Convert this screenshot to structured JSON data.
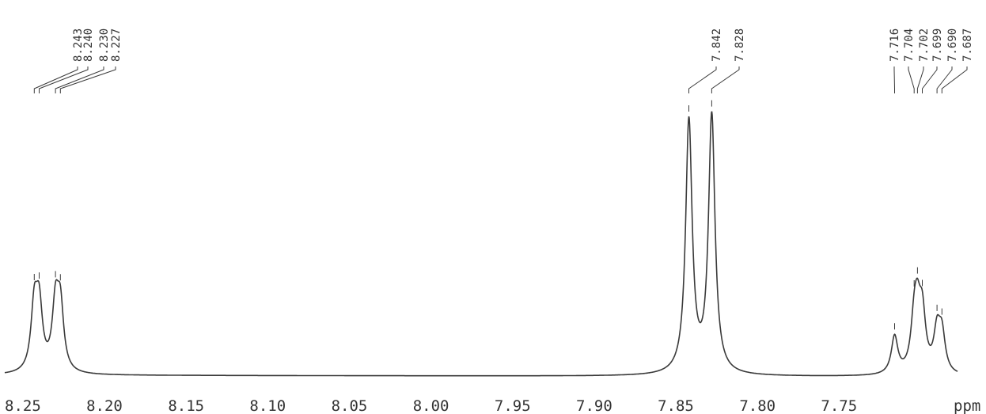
{
  "chart_data": {
    "type": "line",
    "xlabel": "ppm",
    "xlim": [
      8.264,
      7.66
    ],
    "x_reversed": true,
    "x_ticks": [
      "8.25",
      "8.20",
      "8.15",
      "8.10",
      "8.05",
      "8.00",
      "7.95",
      "7.90",
      "7.85",
      "7.80",
      "7.75"
    ],
    "grid": false,
    "legend": false,
    "peaks": [
      {
        "label": "8.243",
        "ppm": 8.243,
        "height": 0.72
      },
      {
        "label": "8.240",
        "ppm": 8.24,
        "height": 0.71
      },
      {
        "label": "8.230",
        "ppm": 8.23,
        "height": 0.73
      },
      {
        "label": "8.227",
        "ppm": 8.227,
        "height": 0.71
      },
      {
        "label": "7.842",
        "ppm": 7.842,
        "height": 2.9
      },
      {
        "label": "7.828",
        "ppm": 7.828,
        "height": 2.96
      },
      {
        "label": "7.716",
        "ppm": 7.716,
        "height": 0.43
      },
      {
        "label": "7.704",
        "ppm": 7.704,
        "height": 0.5
      },
      {
        "label": "7.702",
        "ppm": 7.702,
        "height": 0.55
      },
      {
        "label": "7.699",
        "ppm": 7.699,
        "height": 0.62
      },
      {
        "label": "7.690",
        "ppm": 7.69,
        "height": 0.45
      },
      {
        "label": "7.687",
        "ppm": 7.687,
        "height": 0.43
      }
    ]
  },
  "colors": {
    "trace": "#3a3a3a",
    "text": "#333333"
  }
}
